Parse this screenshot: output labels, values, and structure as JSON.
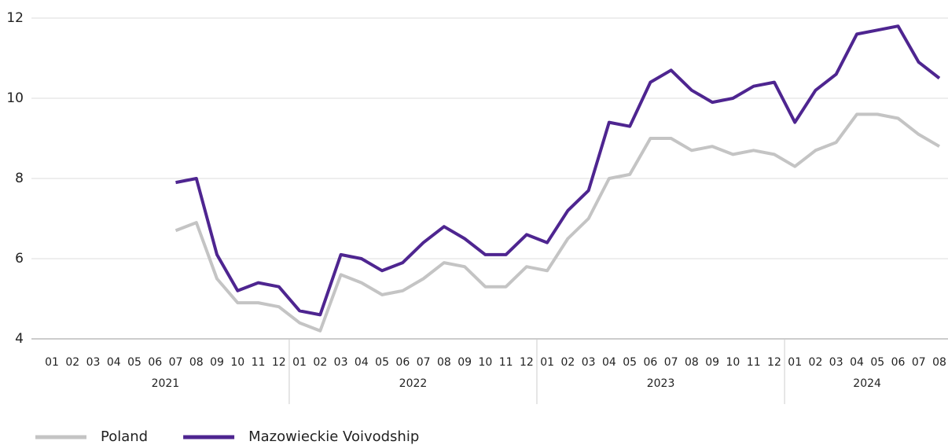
{
  "chart_data": {
    "type": "line",
    "category_groups": [
      {
        "label": "2021",
        "categories": [
          "01",
          "02",
          "03",
          "04",
          "05",
          "06",
          "07",
          "08",
          "09",
          "10",
          "11",
          "12"
        ]
      },
      {
        "label": "2022",
        "categories": [
          "01",
          "02",
          "03",
          "04",
          "05",
          "06",
          "07",
          "08",
          "09",
          "10",
          "11",
          "12"
        ]
      },
      {
        "label": "2023",
        "categories": [
          "01",
          "02",
          "03",
          "04",
          "05",
          "06",
          "07",
          "08",
          "09",
          "10",
          "11",
          "12"
        ]
      },
      {
        "label": "2024",
        "categories": [
          "01",
          "02",
          "03",
          "04",
          "05",
          "06",
          "07",
          "08"
        ]
      }
    ],
    "series": [
      {
        "name": "Poland",
        "color": "#c4c4c4",
        "values": [
          null,
          null,
          null,
          null,
          null,
          null,
          6.7,
          6.9,
          5.5,
          4.9,
          4.9,
          4.8,
          4.4,
          4.2,
          5.6,
          5.4,
          5.1,
          5.2,
          5.5,
          5.9,
          5.8,
          5.3,
          5.3,
          5.8,
          5.7,
          6.5,
          7.0,
          8.0,
          8.1,
          9.0,
          9.0,
          8.7,
          8.8,
          8.6,
          8.7,
          8.6,
          8.3,
          8.7,
          8.9,
          9.6,
          9.6,
          9.5,
          9.1,
          8.8
        ]
      },
      {
        "name": "Mazowieckie Voivodship",
        "color": "#4e2590",
        "values": [
          null,
          null,
          null,
          null,
          null,
          null,
          7.9,
          8.0,
          6.1,
          5.2,
          5.4,
          5.3,
          4.7,
          4.6,
          6.1,
          6.0,
          5.7,
          5.9,
          6.4,
          6.8,
          6.5,
          6.1,
          6.1,
          6.6,
          6.4,
          7.2,
          7.7,
          9.4,
          9.3,
          10.4,
          10.7,
          10.2,
          9.9,
          10.0,
          10.3,
          10.4,
          9.4,
          10.2,
          10.6,
          11.6,
          11.7,
          11.8,
          10.9,
          10.5
        ]
      }
    ],
    "ylim": [
      4,
      12
    ],
    "yticks": [
      4,
      6,
      8,
      10,
      12
    ],
    "grid": true,
    "legend": "bottom-left"
  }
}
